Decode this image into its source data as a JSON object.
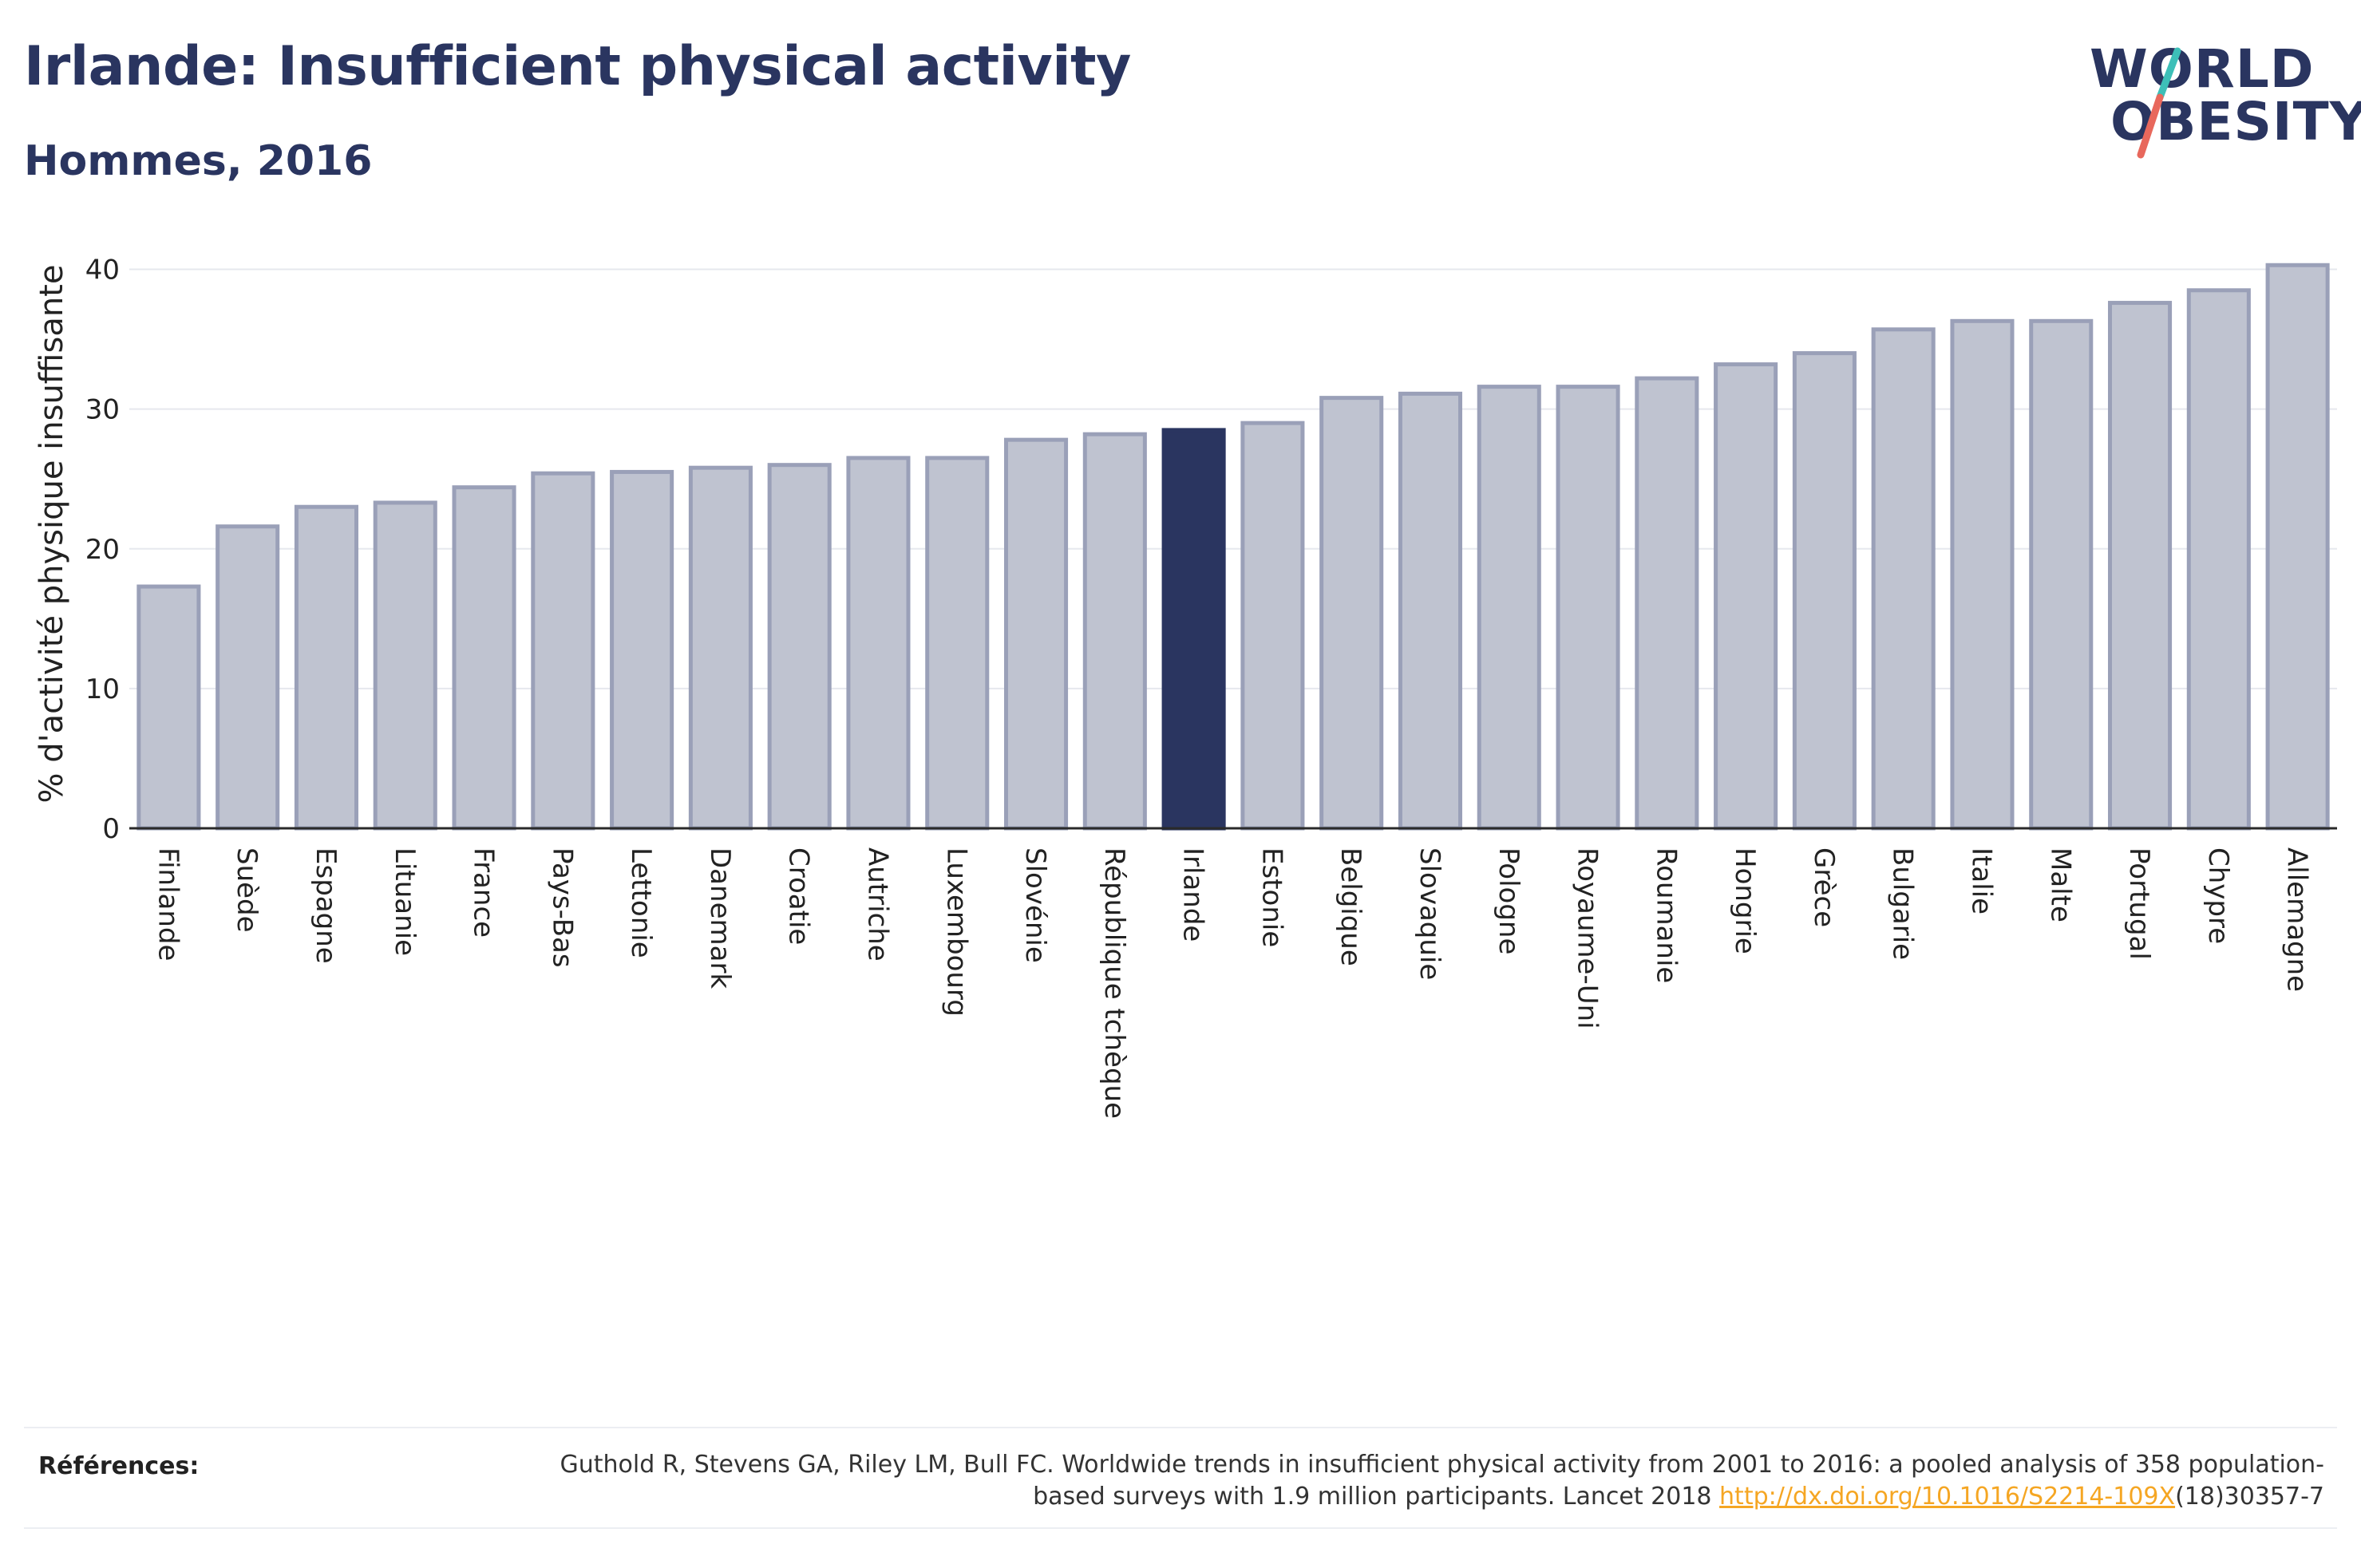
{
  "header": {
    "title": "Irlande: Insufficient physical activity",
    "subtitle": "Hommes, 2016"
  },
  "logo": {
    "line1": "WORLD",
    "line2": "OBESITY",
    "text_color": "#2a3560",
    "slash_colors": [
      "#3dbfb8",
      "#e8685c"
    ]
  },
  "chart_data": {
    "type": "bar",
    "ylabel": "% d'activité physique insuffisante",
    "xlabel": "",
    "ylim": [
      0,
      41
    ],
    "yticks": [
      0,
      10,
      20,
      30,
      40
    ],
    "grid": true,
    "highlight": "Irlande",
    "colors": {
      "bar": "#bfc3d0",
      "bar_border": "#9aa0b8",
      "highlight": "#2a3560"
    },
    "categories": [
      "Finlande",
      "Suède",
      "Espagne",
      "Lituanie",
      "France",
      "Pays-Bas",
      "Lettonie",
      "Danemark",
      "Croatie",
      "Autriche",
      "Luxembourg",
      "Slovénie",
      "République tchèque",
      "Irlande",
      "Estonie",
      "Belgique",
      "Slovaquie",
      "Pologne",
      "Royaume-Uni",
      "Roumanie",
      "Hongrie",
      "Grèce",
      "Bulgarie",
      "Italie",
      "Malte",
      "Portugal",
      "Chypre",
      "Allemagne"
    ],
    "values": [
      17.3,
      21.6,
      23.0,
      23.3,
      24.4,
      25.4,
      25.5,
      25.8,
      26.0,
      26.5,
      26.5,
      27.8,
      28.2,
      28.5,
      29.0,
      30.8,
      31.1,
      31.6,
      31.6,
      32.2,
      33.2,
      34.0,
      35.7,
      36.3,
      36.3,
      37.6,
      38.5,
      40.3
    ]
  },
  "references": {
    "label": "Références:",
    "text_before": "Guthold R, Stevens GA, Riley LM, Bull FC. Worldwide trends in insufficient physical activity from 2001 to 2016: a pooled analysis of 358 population-based surveys with 1.9 million participants. Lancet 2018 ",
    "link": "http://dx.doi.org/10.1016/S2214-109X",
    "text_after": "(18)30357-7"
  }
}
